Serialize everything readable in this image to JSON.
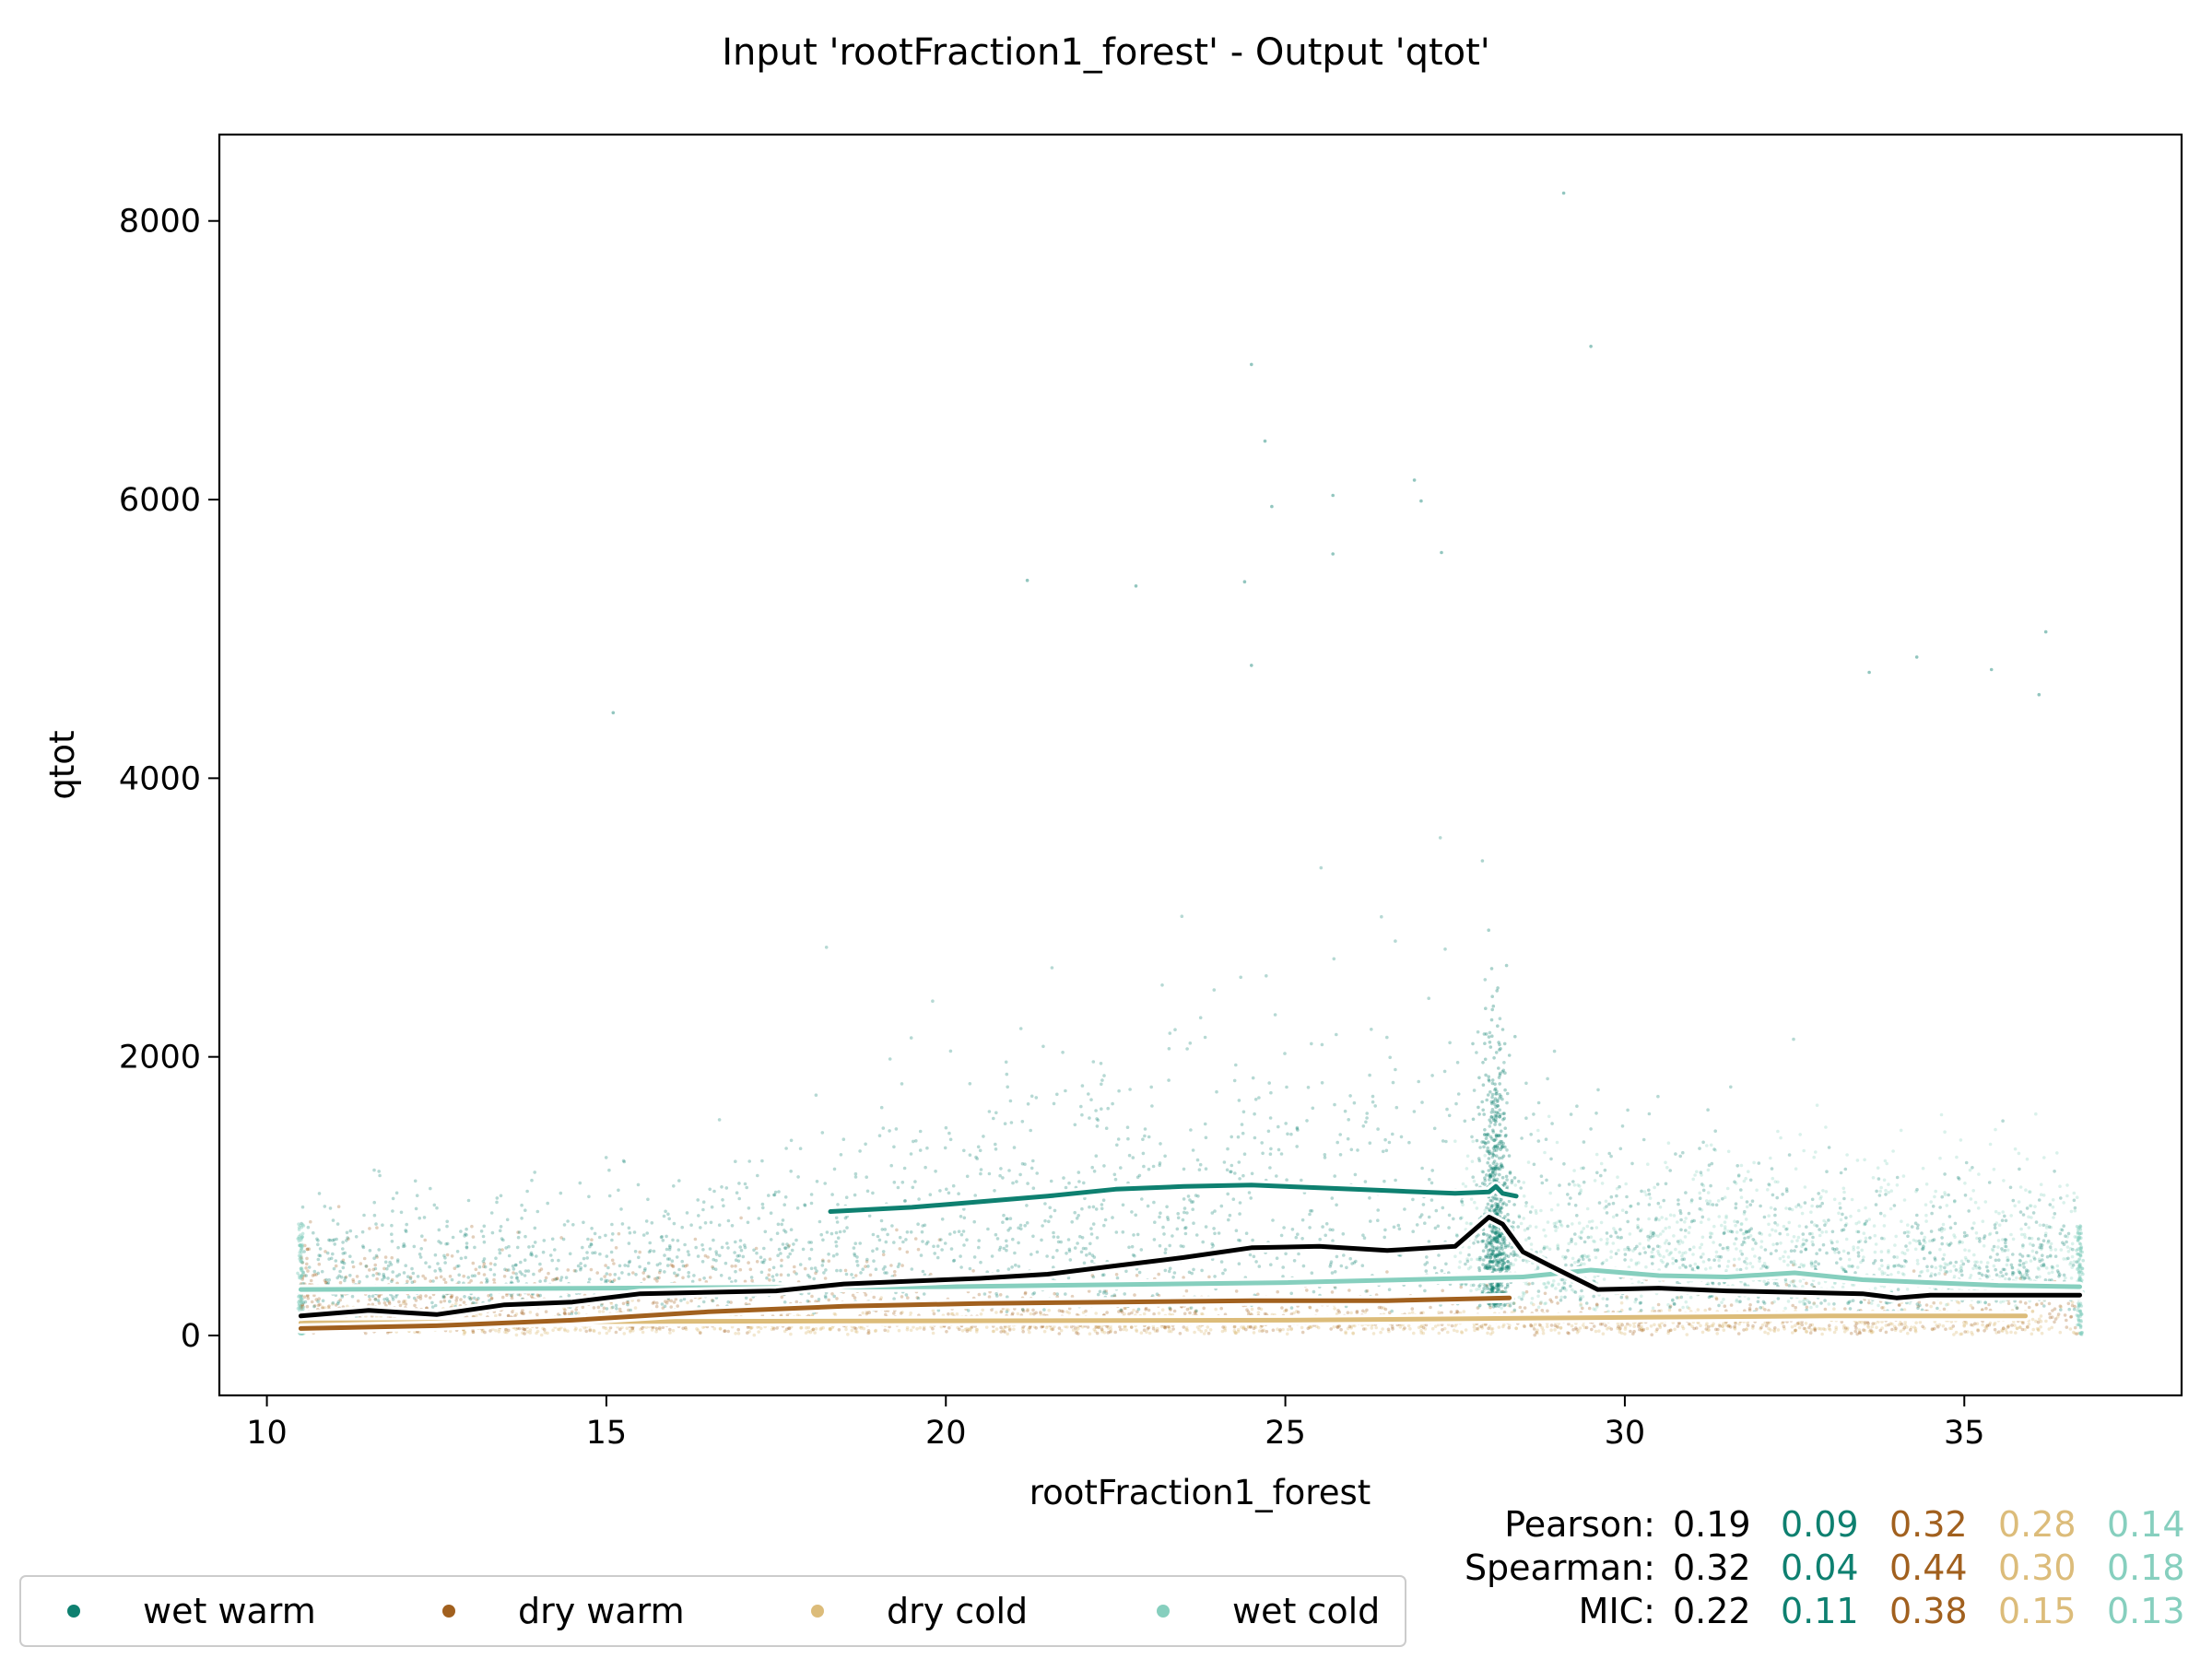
{
  "colors": {
    "overall": "#000000",
    "wet_warm": "#0e8070",
    "dry_warm": "#a1601e",
    "dry_cold": "#dcbc7a",
    "wet_cold": "#86cfbe"
  },
  "chart_data": {
    "type": "scatter",
    "title": "Input 'rootFraction1_forest' - Output 'qtot'",
    "xlabel": "rootFraction1_forest",
    "ylabel": "qtot",
    "xlim": [
      9.3,
      38.2
    ],
    "ylim": [
      -430,
      8620
    ],
    "xticks": [
      10,
      15,
      20,
      25,
      30,
      35
    ],
    "yticks": [
      0,
      2000,
      4000,
      6000,
      8000
    ],
    "grid": false,
    "legend_position": "bottom-left",
    "series": [
      {
        "name": "wet warm",
        "key": "wet_warm",
        "x_range": [
          10.5,
          36.7
        ],
        "spike_x": 28.1
      },
      {
        "name": "dry warm",
        "key": "dry_warm",
        "x_range": [
          10.5,
          36.7
        ]
      },
      {
        "name": "dry cold",
        "key": "dry_cold",
        "x_range": [
          10.5,
          36.7
        ]
      },
      {
        "name": "wet cold",
        "key": "wet_cold",
        "x_range": [
          10.5,
          36.7
        ]
      }
    ],
    "outliers": [
      [
        29.1,
        8200
      ],
      [
        29.5,
        7100
      ],
      [
        24.5,
        6970
      ],
      [
        24.7,
        6420
      ],
      [
        24.8,
        5950
      ],
      [
        25.7,
        6030
      ],
      [
        26.9,
        6140
      ],
      [
        27.0,
        5990
      ],
      [
        27.3,
        5620
      ],
      [
        25.7,
        5610
      ],
      [
        21.2,
        5420
      ],
      [
        22.8,
        5380
      ],
      [
        24.4,
        5410
      ],
      [
        24.5,
        4810
      ],
      [
        15.1,
        4470
      ],
      [
        33.6,
        4760
      ],
      [
        34.3,
        4870
      ],
      [
        35.4,
        4780
      ],
      [
        36.2,
        5050
      ],
      [
        36.1,
        4600
      ]
    ],
    "trend_lines": {
      "overall": [
        [
          10.5,
          140
        ],
        [
          11.5,
          180
        ],
        [
          12.5,
          150
        ],
        [
          13.5,
          220
        ],
        [
          14.5,
          240
        ],
        [
          15.5,
          300
        ],
        [
          16.5,
          310
        ],
        [
          17.5,
          320
        ],
        [
          18.5,
          370
        ],
        [
          19.5,
          390
        ],
        [
          20.5,
          410
        ],
        [
          21.5,
          440
        ],
        [
          22.5,
          500
        ],
        [
          23.5,
          560
        ],
        [
          24.5,
          630
        ],
        [
          25.5,
          640
        ],
        [
          26.5,
          610
        ],
        [
          27.5,
          640
        ],
        [
          28.0,
          850
        ],
        [
          28.2,
          800
        ],
        [
          28.5,
          600
        ],
        [
          28.9,
          500
        ],
        [
          29.6,
          330
        ],
        [
          30.5,
          340
        ],
        [
          31.5,
          320
        ],
        [
          32.5,
          310
        ],
        [
          33.5,
          300
        ],
        [
          34.0,
          270
        ],
        [
          34.5,
          290
        ],
        [
          35.5,
          290
        ],
        [
          36.7,
          290
        ]
      ],
      "wet_warm": [
        [
          18.3,
          890
        ],
        [
          19.5,
          920
        ],
        [
          20.5,
          960
        ],
        [
          21.5,
          1000
        ],
        [
          22.5,
          1050
        ],
        [
          23.5,
          1070
        ],
        [
          24.5,
          1080
        ],
        [
          25.5,
          1060
        ],
        [
          26.5,
          1040
        ],
        [
          27.5,
          1020
        ],
        [
          28.0,
          1030
        ],
        [
          28.1,
          1070
        ],
        [
          28.2,
          1020
        ],
        [
          28.4,
          1000
        ]
      ],
      "dry_warm": [
        [
          10.5,
          50
        ],
        [
          12.5,
          70
        ],
        [
          14.5,
          110
        ],
        [
          16.5,
          170
        ],
        [
          18.5,
          210
        ],
        [
          20.5,
          230
        ],
        [
          22.5,
          240
        ],
        [
          24.5,
          250
        ],
        [
          26.5,
          250
        ],
        [
          28.3,
          270
        ]
      ],
      "dry_cold": [
        [
          10.5,
          90
        ],
        [
          15,
          100
        ],
        [
          20,
          105
        ],
        [
          25,
          110
        ],
        [
          30,
          130
        ],
        [
          33,
          140
        ],
        [
          35.9,
          140
        ]
      ],
      "wet_cold": [
        [
          10.5,
          330
        ],
        [
          15,
          340
        ],
        [
          20,
          350
        ],
        [
          25,
          380
        ],
        [
          28.5,
          420
        ],
        [
          29.5,
          470
        ],
        [
          30.5,
          430
        ],
        [
          31.5,
          420
        ],
        [
          32.5,
          450
        ],
        [
          33.5,
          400
        ],
        [
          34.5,
          380
        ],
        [
          35.5,
          360
        ],
        [
          36.7,
          350
        ]
      ]
    },
    "stats": [
      {
        "label": "Pearson:",
        "values": [
          "0.19",
          "0.09",
          "0.32",
          "0.28",
          "0.14"
        ]
      },
      {
        "label": "Spearman:",
        "values": [
          "0.32",
          "0.04",
          "0.44",
          "0.30",
          "0.18"
        ]
      },
      {
        "label": "MIC:",
        "values": [
          "0.22",
          "0.11",
          "0.38",
          "0.15",
          "0.13"
        ]
      }
    ]
  }
}
